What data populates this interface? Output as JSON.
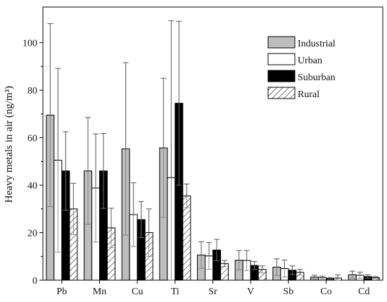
{
  "chart_data": {
    "type": "bar",
    "ylabel": "Heavy metals in air (ng/m³)",
    "ylim": [
      0,
      115
    ],
    "yticks": [
      0,
      20,
      40,
      60,
      80,
      100
    ],
    "categories": [
      "Pb",
      "Mn",
      "Cu",
      "Ti",
      "Sr",
      "V",
      "Sb",
      "Co",
      "Cd"
    ],
    "series": [
      {
        "name": "Industrial",
        "fill": "#bdbdbd",
        "values": [
          69.5,
          46,
          55.3,
          55.7,
          10.6,
          8.4,
          5.5,
          1.3,
          2.3
        ],
        "error": [
          38.5,
          22.5,
          36.3,
          29.3,
          5.6,
          4.1,
          3.5,
          0.8,
          1.5
        ]
      },
      {
        "name": "Urban",
        "fill": "#ffffff",
        "values": [
          50.5,
          38.8,
          27.6,
          43.2,
          10.2,
          8.3,
          4.9,
          1.1,
          2.1
        ],
        "error": [
          38.7,
          22.8,
          13.4,
          66,
          5.6,
          4.2,
          3.6,
          0.6,
          1.3
        ]
      },
      {
        "name": "Suburban",
        "fill": "#000000",
        "values": [
          46,
          46,
          25.5,
          74.5,
          12.7,
          6.2,
          4.2,
          0.7,
          1.5
        ],
        "error": [
          16.5,
          15.8,
          7.6,
          34.5,
          4.5,
          1.7,
          1.8,
          0.4,
          0.7
        ]
      },
      {
        "name": "Rural",
        "fill": "hatch",
        "values": [
          30,
          22,
          20,
          35.5,
          7,
          4.5,
          3.3,
          0.9,
          1.1
        ],
        "error": [
          10.8,
          8.3,
          10,
          5,
          1.3,
          1.5,
          1.2,
          1.3,
          0.4
        ]
      }
    ],
    "legend_position": "top-right",
    "grid": false
  }
}
